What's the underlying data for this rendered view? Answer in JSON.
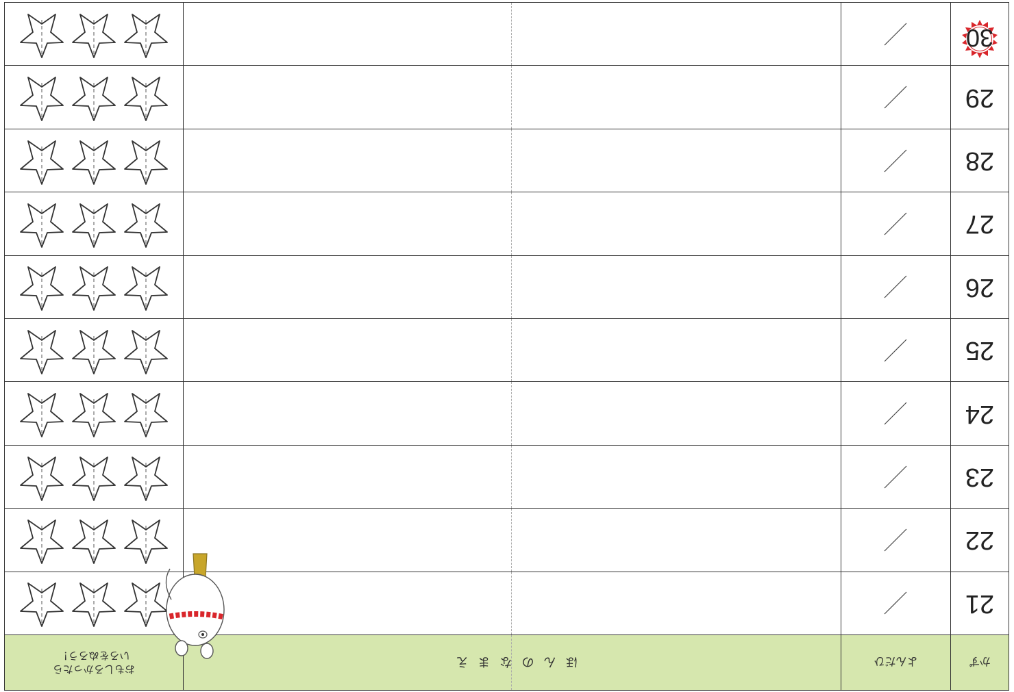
{
  "header": {
    "number_label": "かず",
    "date_label": "よんだひ",
    "title_label": "ほんのなまえ",
    "rating_line1": "おもしろかったら",
    "rating_line2": "いろをぬろう！"
  },
  "rows": [
    {
      "num": "21"
    },
    {
      "num": "22"
    },
    {
      "num": "23"
    },
    {
      "num": "24"
    },
    {
      "num": "25"
    },
    {
      "num": "26"
    },
    {
      "num": "27"
    },
    {
      "num": "28"
    },
    {
      "num": "29"
    },
    {
      "num": "30"
    }
  ],
  "colors": {
    "header_bg": "#d6e7ae",
    "badge_red": "#d9262b",
    "necklace": "#d9262b",
    "boot": "#c8a62a"
  }
}
